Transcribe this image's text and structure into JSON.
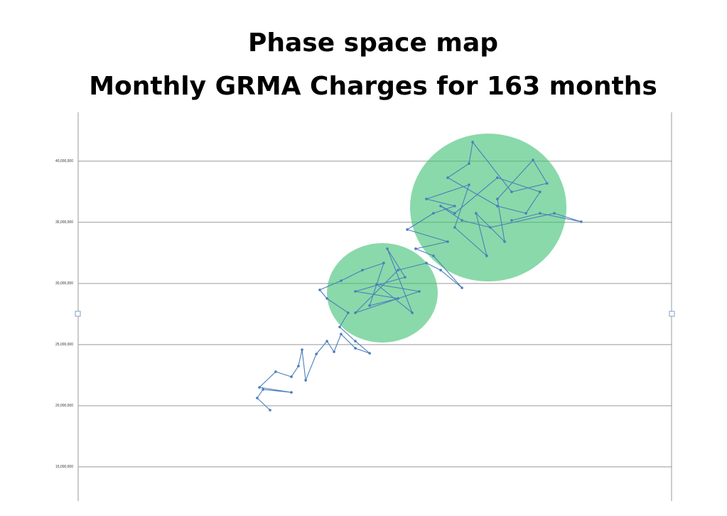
{
  "chart_data": {
    "type": "line",
    "title": "Phase space map",
    "subtitle": "Monthly GRMA Charges for 163 months",
    "color": "#4a7ebb",
    "xlim": [
      10000000,
      39500000
    ],
    "ylim": [
      12200000,
      44000000
    ],
    "yticks": [
      {
        "value": 15000000,
        "label": "15,000,000"
      },
      {
        "value": 20000000,
        "label": "20,000,000"
      },
      {
        "value": 25000000,
        "label": "25,000,000"
      },
      {
        "value": 30000000,
        "label": "30,000,000"
      },
      {
        "value": 35000000,
        "label": "35,000,000"
      },
      {
        "value": 40000000,
        "label": "40,000,000"
      }
    ],
    "grid": true,
    "x": [
      19540000,
      18900000,
      19190000,
      20600000,
      19010000,
      19820000,
      20600000,
      20950000,
      21130000,
      21310000,
      21840000,
      22370000,
      22720000,
      23070000,
      23780000,
      24490000,
      23780000,
      23000000,
      23420000,
      22370000,
      22010000,
      23070000,
      24130000,
      25190000,
      24490000,
      25900000,
      23780000,
      26250000,
      25370000,
      26610000,
      24840000,
      26960000,
      23780000,
      25900000,
      27310000,
      28020000,
      29080000,
      27660000,
      26780000,
      28370000,
      26360000,
      27660000,
      28720000,
      27310000,
      29430000,
      28720000,
      30310000,
      29780000,
      31200000,
      30840000,
      32610000,
      33310000,
      31550000,
      29610000,
      29430000,
      28370000,
      30840000,
      32260000,
      32960000,
      30840000,
      28720000,
      28020000,
      29080000,
      30490000,
      33670000,
      35010000,
      32960000,
      31550000
    ],
    "values": [
      19640000,
      20630000,
      21330000,
      21090000,
      21500000,
      22780000,
      22370000,
      23240000,
      24580000,
      22080000,
      24230000,
      25280000,
      24410000,
      25860000,
      24700000,
      24290000,
      25280000,
      26440000,
      27600000,
      28770000,
      29470000,
      30220000,
      31090000,
      31670000,
      28190000,
      28770000,
      29350000,
      30510000,
      32840000,
      27600000,
      29930000,
      29350000,
      27600000,
      31090000,
      31670000,
      31090000,
      29640000,
      32260000,
      32840000,
      33420000,
      34410000,
      35740000,
      36330000,
      36910000,
      38070000,
      34580000,
      32260000,
      35740000,
      33420000,
      36910000,
      40100000,
      38190000,
      37490000,
      41560000,
      39810000,
      38650000,
      36330000,
      35740000,
      37490000,
      38650000,
      35740000,
      36330000,
      35160000,
      34580000,
      35740000,
      35050000,
      35740000,
      35160000
    ]
  }
}
